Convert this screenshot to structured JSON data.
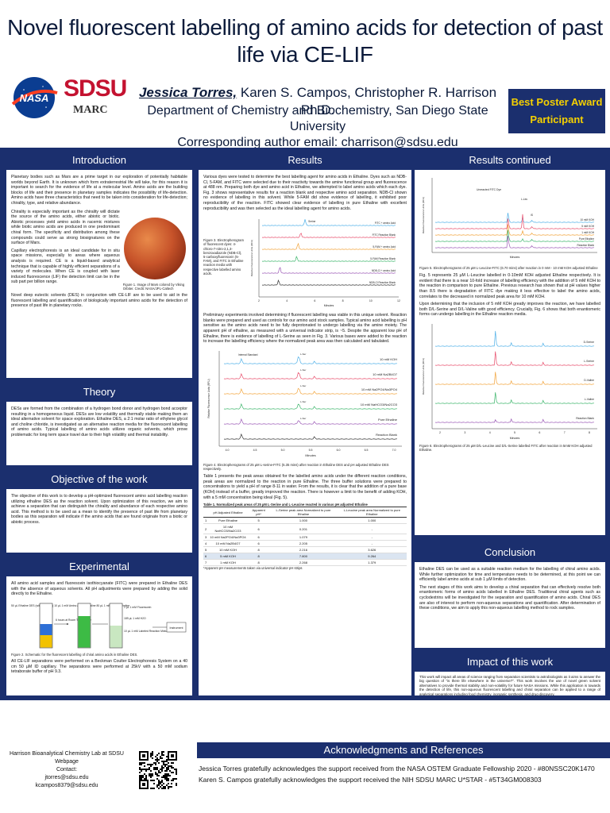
{
  "header": {
    "title": "Novel fluorescent labelling of amino acids for detection of past life via CE-LIF",
    "lead_author": "Jessica Torres,",
    "other_authors": " Karen S. Campos, Christopher R. Harrison Ph.D.",
    "department": "Department of Chemistry and Biochemistry, San Diego State University",
    "contact": "Corresponding author email: charrison@sdsu.edu",
    "logo_nasa": "NASA",
    "logo_sdsu": "SDSU",
    "logo_marc": "MARC",
    "award": "Best Poster Award Participant"
  },
  "sections": {
    "introduction": {
      "title": "Introduction",
      "p1": "Planetary bodies such as Mars are a prime target in our exploration of potentially habitable worlds beyond Earth. It is unknown which form extraterrestrial life will take, for this reason it is important to search for the evidence of life at a molecular level. Amino acids are the building blocks of life and their presence in planetary samples indicates the possibility of life-detection. Amino acids have three characteristics that need to be taken into consideration for life-detection; chirality, type, and relative abundance.",
      "p2": "Chirality is especially important as the chirality will dictate the source of the amino acids, either abiotic or biotic. Abiotic processes yield amino acids in racemic mixtures while biotic amino acids are produced in one predominant chiral form. The specificity and distribution among these compounds could serve as strong biosignatures on the surface of Mars.",
      "p3": "Capillary electrophoresis is an ideal candidate for in situ space missions, especially to areas where aqueous analysis is required. CE is a liquid-based analytical technique that is capable of highly efficient separations of a variety of molecules. When CE is coupled with laser induced fluorescence (LIF) the detection limit can be in the sub part per billion range.",
      "p4": "Novel deep eutectic solvents (DES) in conjunction with CE-LIF are to be used to aid in the fluorescent labelling and quantification of biologically important amino acids for the detection of presence of past life in planetary rocks.",
      "fig1_caption": "Figure 1. Image of Mars colored by Viking Orbiter. Credit: NASA/JPL-Caltech"
    },
    "theory": {
      "title": "Theory",
      "p1": "DESs are formed from the combination of a hydrogen bond donor and hydrogen bond acceptor resulting in a homogeneous liquid. DESs are low volatility and thermally stable making them an ideal alternative solvent for space exploration. Ethaline DES, a 2:1 molar ratio of ethylene glycol and choline chloride, is investigated as an alternative reaction media for the fluorescent labelling of amino acids. Typical labelling of amino acids utilizes organic solvents, which prove problematic for long term space travel due to their high volatility and thermal instability."
    },
    "objective": {
      "title": "Objective of the work",
      "p1": "The objective of this work is to develop a pH-optimized fluorescent amino acid labelling reaction utilizing ethaline DES as the reaction solvent. Upon optimization of this reaction, we aim to achieve a separation that can distinguish the chirality and abundance of each respective amino acid. This method is to be used as a mean to identify the presence of past life from planetary bodies as this separation will indicate if the amino acids that are found originate from a biotic or abiotic process."
    },
    "experimental": {
      "title": "Experimental",
      "p1": "All amino acid samples and fluorescein isothiocyanate (FITC) were prepared in Ethaline DES with the absence of aqueous solvents. All pH adjustments were prepared by adding the solid directly to the Ethaline.",
      "p2": "All CE-LIF separations were performed on a Beckman Coulter Electrophoresis System on a 40 cm 50 µM ID capillary. The separations were performed at 25kV with a 50 mM sodium tetraborate buffer of pH 9.3.",
      "fig2_caption": "Figure 2. Schematic for the fluorescent labelling of chiral amino acids in Ethaline DES.",
      "schematic": {
        "left_label": "50 µL Ethaline DES (with additions) 10 µL 1 mM Amino Acid in Ethaline 80 µL 1 mM Dye in Ethaline",
        "step1": "6 hours at Room Temperature",
        "right_label1": "1 µL 1 mM Fluorescein",
        "right_label2": "189 µL 1 mM H2O",
        "right_label3": "10 µL 1 mM Labeled Reaction Mixture",
        "instrument": "Instrument"
      }
    },
    "results": {
      "title": "Results",
      "p1": "Various dyes were tested to determine the best labelling agent for amino acids in Ethaline. Dyes such as NDB-Cl, 5-FAM, and FITC were selected due to their reactivity towards the amine functional group and fluorescence at 488 nm. Preparing both dye and amino acid in Ethaline, we attempted to label amino acids which each dye. Fig. 3 shows representative results for a reaction blank and respective amino acid separation. NDB-Cl shown no evidence of labelling in this solvent. While 5-FAM did show evidence of labelling, it exhibited poor reproducibility of the reaction. FITC showed clear evidence of labelling in pure Ethaline with excellent reproducibility and was then selected as the ideal labelling agent for amino acids.",
      "fig3_caption": "Figure 3. Electropherogram of fluorescent dyes: 4-chloro-7-nitro-2,1,3-benzoxadiazole (NDB-Cl), 5-carboxyfluorescein (5-FAM), and FITC in Ethaline reaction media with respective labelled amino acids.",
      "p2": "Preliminary experiments involved determining if fluorescent labelling was viable in this unique solvent. Reaction blanks were prepared and used as controls for our amino acid stock samples. Typical amino acid labelling is pH sensitive as the amino acids need to be fully deprotonated to undergo labelling via the amine moiety. The apparent pH of ethaline, as measured with a universal indicator strip, is ~5. Despite the apparent low pH of Ethaline, there is evidence of labelling of L-Serine as seen in Fig. 3. Various bases were added to the reaction to increase the labelling efficiency where the normalized peak area was then calculated and tabulated.",
      "fig4_caption": "Figure 4. Electropherograms of 25 µM L-serine-FITC (5.35 mins) after reaction in Ethaline DES and pH adjusted Ethaline DES respectively.",
      "p3": "Table 1 presents the peak areas obtained for the labelled amino acids under the different reaction conditions, peak areas are normalized to the reaction in pure Ethaline. The three buffer solutions were prepared to concentrations to yield a pH of range 8-11 in water. From the results, it is clear that the addition of a pure base (KOH) instead of a buffer, greatly improved the reaction. There is however a limit to the benefit of adding KOH, with a 5 mM concentration being ideal (Fig. 5).",
      "table_caption": "Table 1. Normalized peak areas of 25 µM L-Serine and L-Leucine reacted in various pH adjusted Ethaline",
      "table_footnote": "*Apparent pH measurements taken via universal indicator pH strips",
      "table": {
        "headers": [
          "",
          "pH Adjusted Ethaline",
          "Apparent pH*",
          "L-Serine peak area Normalized to pure Ethaline",
          "L-Leucine peak area Normalized to pure Ethaline"
        ],
        "rows": [
          [
            "1",
            "Pure Ethaline",
            "5",
            "1.000",
            "1.000"
          ],
          [
            "2",
            "10 mM NaHCO3/Na2CO3",
            "6",
            "0.201",
            "-"
          ],
          [
            "3",
            "10 mM Na2PO4/Na3PO4",
            "6",
            "1.079",
            "-"
          ],
          [
            "4",
            "10 mM Na2B4O7",
            "6",
            "2.205",
            "-"
          ],
          [
            "5",
            "10 mM KOH",
            "8",
            "2.216",
            "3.626"
          ],
          [
            "6",
            "5 mM KOH",
            "8",
            "7.800",
            "9.264"
          ],
          [
            "7",
            "1 mM KOH",
            "8",
            "2.268",
            "1.379"
          ]
        ]
      }
    },
    "results_continued": {
      "title": "Results continued",
      "fig5_caption": "Figure 5. Electropherograms of 25 µM L-Leucine-FITC (6.70 mins) after reaction in 0 mM - 10 mM KOH adjusted Ethaline",
      "p1": "Fig. 5 represents 25 µM L-Leucine labelled in 0-10mM KOH adjusted Ethaline respectively. It is evident that there is a near 10-fold increase of labelling efficiency with the addition of 5 mM KOH to the reaction in comparison to pure Ethaline. Previous research has shown that at pH values higher than 8.5 there is degradation of FITC dye making it less effective to label the amino acids, correlates to the decreased in normalized peak area for 10 mM KOH.",
      "p2": "Upon determining that the inclusion of 5 mM KOH greatly improves the reaction, we have labelled both D/L-Serine and D/L-Valine with good efficiency. Crucially, Fig. 6 shows that both enantiomeric forms can undergo labelling in the Ethaline reaction media.",
      "fig6_caption": "Figure 6. Electropherograms of 25 µM D/L-Leucine and D/L-Serine labelled FITC after reaction in 5mM KOH adjusted Ethaline."
    },
    "conclusion": {
      "title": "Conclusion",
      "p1": "Ethaline DES can be used as a suitable reaction medium for the labelling of chiral amino acids. While further optimization for time and temperature needs to be determined, at this point we can efficiently label amino acids at sub 1 µM limits of detection.",
      "p2": "The next stages of this work aims to develop a chiral separation that can effectively resolve both enantiomeric forms of amino acids labelled in Ethaline DES. Traditional chiral agents such as cyclodextrins will be investigated for the separation and quantification of amino acids. Chiral DES are also of interest to perform non-aqueous separations and quantification. After determination of these conditions, we aim to apply this non-aqueous labelling method to rock samples."
    },
    "impact": {
      "title": "Impact of this work",
      "p1": "This work will impact all areas of science ranging from separation scientists to astrobiologists as it aims to answer the big question of \"is there life elsewhere in the universe?\". This work involves the use of novel green solvent alternatives to provide thermal stability and non-volatility for future NASA missions. While this application is towards the detection of life, this non-aqueous fluorescent labelling and chiral separation can be applied to a range of analytical separations including food chemistry, inorganic synthesis, and drug discovery."
    },
    "acknowledgments": {
      "title": "Acknowledgments and References",
      "line1": "Jessica Torres gratefully acknowledges the support received from the NASA OSTEM Graduate Fellowship 2020 - #80NSSC20K1470",
      "line2": "Karen S. Campos gratefully acknowledges the support received the NIH SDSU MARC U*STAR - #5T34GM008303"
    }
  },
  "footer": {
    "lab": "Harrison Bioanalytical Chemistry Lab at SDSU Webpage",
    "contact_label": "Contact:",
    "email1": "jtorres@sdsu.edu",
    "email2": "kcampos8379@sdsu.edu",
    "qr_icon": "qr-code-icon"
  },
  "chart_data": [
    {
      "type": "line",
      "id": "fig3",
      "xlabel": "Minutes",
      "ylabel": "Relative Fluorescence Units (RFU)",
      "xlim": [
        2,
        12
      ],
      "series": [
        {
          "name": "FITC + amino Acid",
          "peak_x": 5.3
        },
        {
          "name": "FITC Reaction Blank",
          "peak_x": 5.0
        },
        {
          "name": "5-FAM + amino Acid",
          "peak_x": 4.8
        },
        {
          "name": "5-FAM Reaction Blank",
          "peak_x": 4.7
        },
        {
          "name": "NDB-Cl + amino Acid",
          "peak_x": 3.5
        },
        {
          "name": "NDB-Cl Reaction Blank",
          "peak_x": 3.4
        }
      ],
      "annotation": "Serine"
    },
    {
      "type": "line",
      "id": "fig4",
      "xlabel": "Minutes",
      "ylabel": "Relative Fluorescence Units (RFU)",
      "x_ticks": [
        "4.0",
        "4.5",
        "5.0",
        "5.5",
        "6.0",
        "6.5",
        "7.0"
      ],
      "annotations": [
        "Internal Standard",
        "L-Ser"
      ],
      "series": [
        {
          "name": "10 mM KOH"
        },
        {
          "name": "10 mM Na2B4O7"
        },
        {
          "name": "10 mM Na2PO4/Na3PO4"
        },
        {
          "name": "10 mM NaHCO3/Na2CO3"
        },
        {
          "name": "Pure Ethaline"
        },
        {
          "name": "Reaction Blank"
        }
      ]
    },
    {
      "type": "line",
      "id": "fig5",
      "xlabel": "Minutes",
      "ylabel": "Relative Fluorescence Units (RFU)",
      "annotations": [
        "Unreacted FITC Dye",
        "L-Leu",
        "IS"
      ],
      "series": [
        {
          "name": "10 mM KOH"
        },
        {
          "name": "5 mM KOH"
        },
        {
          "name": "1 mM KOH"
        },
        {
          "name": "Pure Ethaline"
        },
        {
          "name": "Reaction Blank"
        }
      ]
    },
    {
      "type": "line",
      "id": "fig6",
      "xlabel": "Minutes",
      "ylabel": "Relative Fluorescence Units (RFU)",
      "x_ticks": [
        "2",
        "3",
        "4",
        "5",
        "6",
        "7",
        "8"
      ],
      "series": [
        {
          "name": "D-Serine"
        },
        {
          "name": "L-Serine"
        },
        {
          "name": "D-Valine"
        },
        {
          "name": "L-Valine"
        },
        {
          "name": "Reaction Blank"
        }
      ]
    }
  ],
  "colors": {
    "navy": "#1b2f6e",
    "gold": "#f5d000",
    "sdsu_red": "#c41230"
  }
}
